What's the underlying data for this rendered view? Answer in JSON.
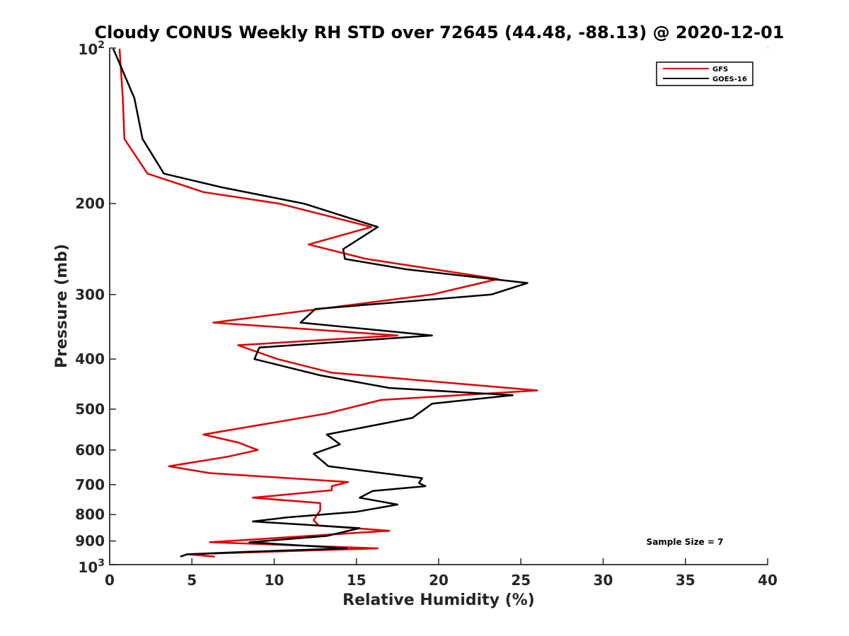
{
  "chart_data": {
    "type": "line",
    "title": "Cloudy CONUS Weekly RH STD over 72645 (44.48, -88.13) @ 2020-12-01",
    "xlabel": "Relative Humidity (%)",
    "ylabel": "Pressure (mb)",
    "xlim": [
      0,
      40
    ],
    "ylim": [
      100,
      1000
    ],
    "y_scale": "log",
    "y_reversed": true,
    "x_ticks": [
      0,
      5,
      10,
      15,
      20,
      25,
      30,
      35,
      40
    ],
    "x_tick_labels": [
      "0",
      "5",
      "10",
      "15",
      "20",
      "25",
      "30",
      "35",
      "40"
    ],
    "y_ticks": [
      200,
      300,
      400,
      500,
      600,
      700,
      800,
      900
    ],
    "y_tick_labels": [
      "200",
      "300",
      "400",
      "500",
      "600",
      "700",
      "800",
      "900"
    ],
    "y_top_label": {
      "base": "10",
      "exp": "2"
    },
    "y_bottom_label": {
      "base": "10",
      "exp": "3"
    },
    "grid": false,
    "legend_position": "top-right",
    "annotation": "Sample Size = 7",
    "series": [
      {
        "name": "GFS",
        "color": "#e00000",
        "points": [
          [
            0.6,
            100
          ],
          [
            0.8,
            125
          ],
          [
            0.9,
            150
          ],
          [
            2.3,
            175
          ],
          [
            5.7,
            190
          ],
          [
            10.3,
            200
          ],
          [
            15.9,
            222
          ],
          [
            12.1,
            240
          ],
          [
            15.6,
            256
          ],
          [
            23.6,
            280
          ],
          [
            19.6,
            300
          ],
          [
            6.3,
            340
          ],
          [
            17.5,
            360
          ],
          [
            7.8,
            376
          ],
          [
            10.2,
            400
          ],
          [
            13.5,
            425
          ],
          [
            26.0,
            460
          ],
          [
            16.5,
            480
          ],
          [
            13.2,
            510
          ],
          [
            5.7,
            560
          ],
          [
            7.8,
            580
          ],
          [
            9.0,
            600
          ],
          [
            7.2,
            618
          ],
          [
            3.6,
            645
          ],
          [
            6.1,
            665
          ],
          [
            14.5,
            692
          ],
          [
            13.5,
            705
          ],
          [
            13.5,
            718
          ],
          [
            8.7,
            742
          ],
          [
            12.8,
            760
          ],
          [
            12.8,
            785
          ],
          [
            12.4,
            820
          ],
          [
            12.7,
            840
          ],
          [
            17.0,
            860
          ],
          [
            6.1,
            905
          ],
          [
            16.3,
            930
          ],
          [
            4.8,
            955
          ],
          [
            6.4,
            965
          ]
        ]
      },
      {
        "name": "GOES-16",
        "color": "#000000",
        "points": [
          [
            0.2,
            100
          ],
          [
            1.5,
            125
          ],
          [
            2.0,
            150
          ],
          [
            3.3,
            175
          ],
          [
            6.8,
            186
          ],
          [
            11.8,
            200
          ],
          [
            16.3,
            222
          ],
          [
            14.2,
            245
          ],
          [
            14.3,
            256
          ],
          [
            18.0,
            268
          ],
          [
            25.4,
            285
          ],
          [
            23.2,
            300
          ],
          [
            12.5,
            320
          ],
          [
            11.6,
            340
          ],
          [
            19.6,
            360
          ],
          [
            9.1,
            380
          ],
          [
            8.8,
            400
          ],
          [
            12.8,
            430
          ],
          [
            17.0,
            455
          ],
          [
            24.5,
            470
          ],
          [
            19.6,
            488
          ],
          [
            18.4,
            520
          ],
          [
            13.2,
            560
          ],
          [
            14.0,
            585
          ],
          [
            12.4,
            610
          ],
          [
            13.3,
            645
          ],
          [
            19.0,
            680
          ],
          [
            18.8,
            695
          ],
          [
            19.2,
            705
          ],
          [
            16.0,
            720
          ],
          [
            15.2,
            742
          ],
          [
            17.5,
            765
          ],
          [
            15.0,
            790
          ],
          [
            10.8,
            810
          ],
          [
            8.7,
            825
          ],
          [
            15.2,
            850
          ],
          [
            13.2,
            880
          ],
          [
            8.5,
            905
          ],
          [
            14.4,
            930
          ],
          [
            8.2,
            945
          ],
          [
            4.7,
            955
          ],
          [
            4.3,
            965
          ]
        ]
      }
    ]
  }
}
